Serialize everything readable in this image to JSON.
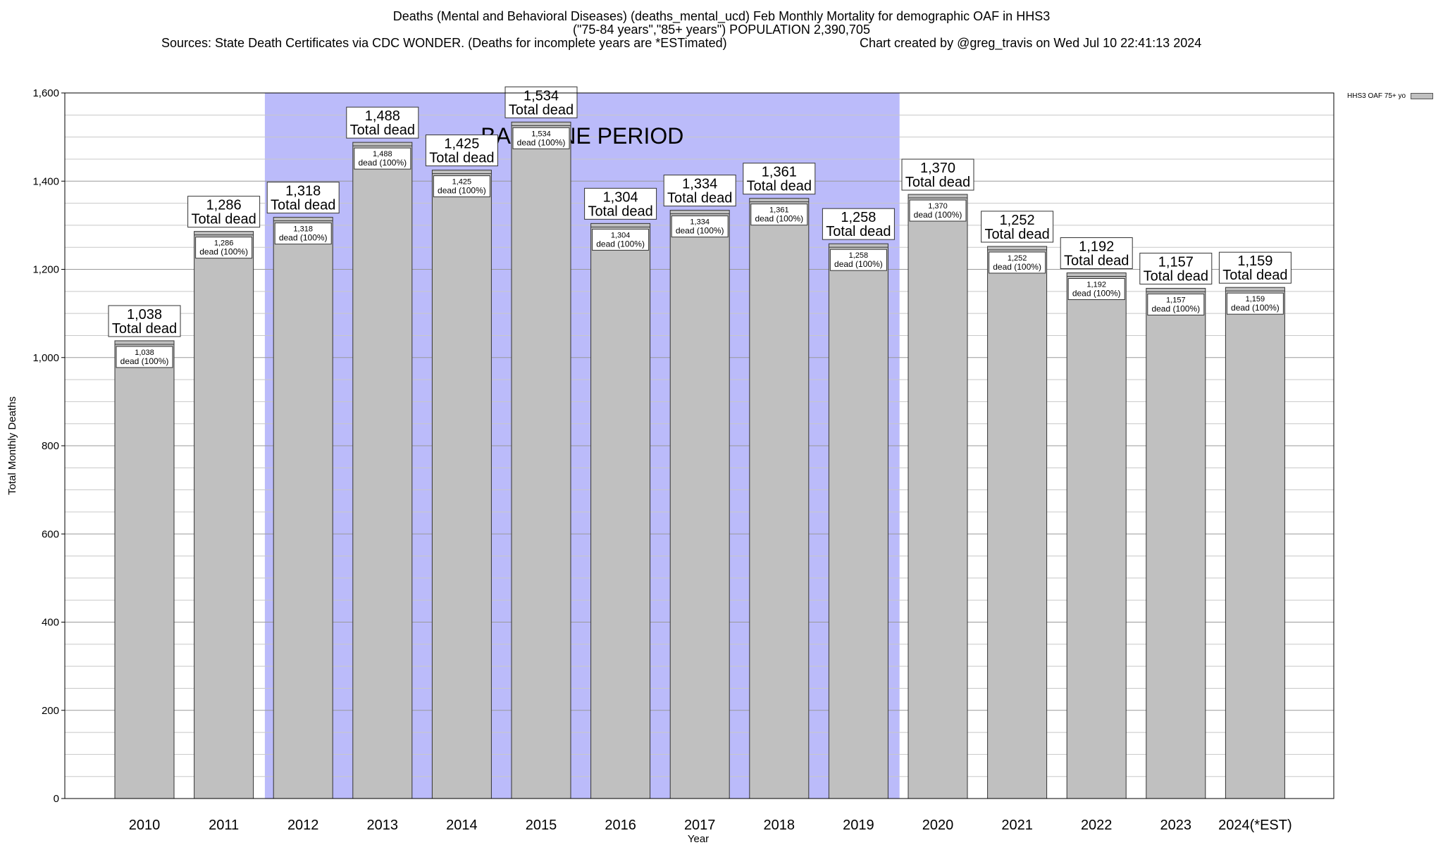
{
  "chart_data": {
    "type": "bar",
    "title": "Deaths (Mental and Behavioral Diseases) (deaths_mental_ucd) Feb Monthly Mortality for demographic OAF in HHS3",
    "subtitle": "(\"75-84 years\",\"85+ years\") POPULATION 2,390,705",
    "sources": "Sources: State Death Certificates via CDC WONDER. (Deaths for incomplete years are *ESTimated)",
    "credit": "Chart created by @greg_travis on Wed Jul 10 22:41:13 2024",
    "xlabel": "Year",
    "ylabel": "Total Monthly Deaths",
    "ylim": [
      0,
      1600
    ],
    "yticks": [
      "0",
      "200",
      "400",
      "600",
      "800",
      "1,000",
      "1,200",
      "1,400",
      "1,600"
    ],
    "grid": true,
    "legend_position": "top-right",
    "categories": [
      "2010",
      "2011",
      "2012",
      "2013",
      "2014",
      "2015",
      "2016",
      "2017",
      "2018",
      "2019",
      "2020",
      "2021",
      "2022",
      "2023",
      "2024(*EST)"
    ],
    "series": [
      {
        "name": "HHS3 OAF 75+ yo",
        "values": [
          1038,
          1286,
          1318,
          1488,
          1425,
          1534,
          1304,
          1334,
          1361,
          1258,
          1370,
          1252,
          1192,
          1157,
          1159
        ],
        "labels": [
          "1,038",
          "1,286",
          "1,318",
          "1,488",
          "1,425",
          "1,534",
          "1,304",
          "1,334",
          "1,361",
          "1,258",
          "1,370",
          "1,252",
          "1,192",
          "1,157",
          "1,159"
        ],
        "color": "#c0c0c0"
      }
    ],
    "total_dead_text": "Total dead",
    "inner_label_text": "dead (100%)",
    "baseline": {
      "label": "BASELINE PERIOD",
      "from": "2012",
      "to": "2019",
      "color": "#bbbbfa"
    }
  }
}
